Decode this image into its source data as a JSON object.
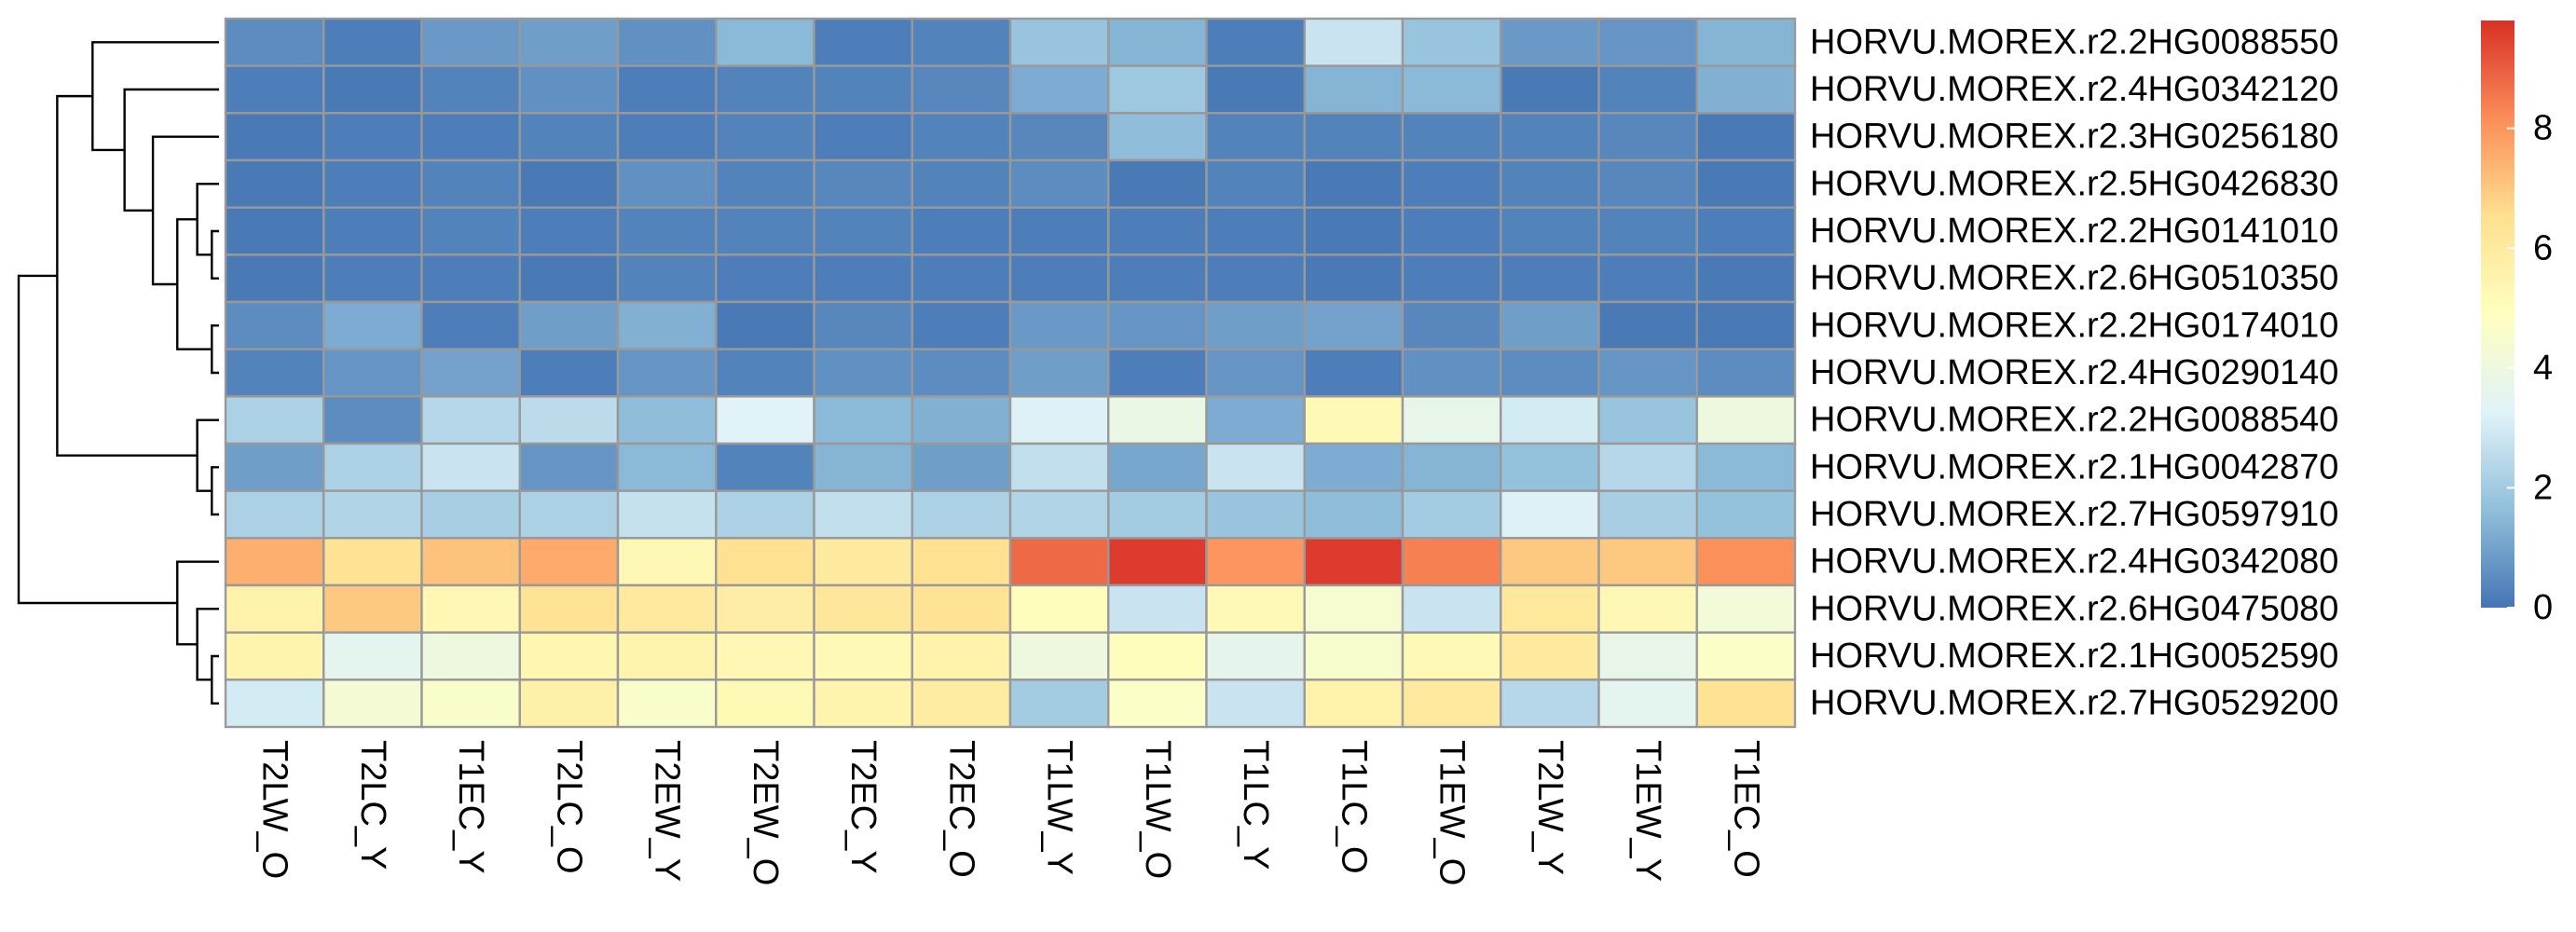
{
  "chart_data": {
    "type": "heatmap",
    "title": "",
    "xlabel": "",
    "ylabel": "",
    "columns": [
      "T2LW_O",
      "T2LC_Y",
      "T1EC_Y",
      "T2LC_O",
      "T2EW_Y",
      "T2EW_O",
      "T2EC_Y",
      "T2EC_O",
      "T1LW_Y",
      "T1LW_O",
      "T1LC_Y",
      "T1LC_O",
      "T1EW_O",
      "T2LW_Y",
      "T1EW_Y",
      "T1EC_O"
    ],
    "rows": [
      "HORVU.MOREX.r2.2HG0088550",
      "HORVU.MOREX.r2.4HG0342120",
      "HORVU.MOREX.r2.3HG0256180",
      "HORVU.MOREX.r2.5HG0426830",
      "HORVU.MOREX.r2.2HG0141010",
      "HORVU.MOREX.r2.6HG0510350",
      "HORVU.MOREX.r2.2HG0174010",
      "HORVU.MOREX.r2.4HG0290140",
      "HORVU.MOREX.r2.2HG0088540",
      "HORVU.MOREX.r2.1HG0042870",
      "HORVU.MOREX.r2.7HG0597910",
      "HORVU.MOREX.r2.4HG0342080",
      "HORVU.MOREX.r2.6HG0475080",
      "HORVU.MOREX.r2.1HG0052590",
      "HORVU.MOREX.r2.7HG0529200"
    ],
    "values": [
      [
        0.5,
        0.2,
        0.8,
        0.9,
        0.6,
        1.5,
        0.2,
        0.3,
        1.8,
        1.4,
        0.2,
        2.8,
        1.8,
        0.8,
        0.7,
        1.4
      ],
      [
        0.2,
        0.1,
        0.3,
        0.6,
        0.2,
        0.3,
        0.3,
        0.4,
        1.2,
        1.9,
        0.1,
        1.4,
        1.5,
        0.1,
        0.3,
        1.3
      ],
      [
        0.1,
        0.2,
        0.2,
        0.3,
        0.2,
        0.3,
        0.2,
        0.3,
        0.4,
        1.6,
        0.3,
        0.3,
        0.3,
        0.3,
        0.4,
        0.1
      ],
      [
        0.1,
        0.2,
        0.3,
        0.1,
        0.6,
        0.3,
        0.4,
        0.3,
        0.5,
        0.1,
        0.3,
        0.1,
        0.2,
        0.3,
        0.4,
        0.1
      ],
      [
        0.1,
        0.2,
        0.3,
        0.2,
        0.3,
        0.3,
        0.3,
        0.2,
        0.2,
        0.2,
        0.2,
        0.1,
        0.2,
        0.3,
        0.3,
        0.2
      ],
      [
        0.1,
        0.2,
        0.2,
        0.1,
        0.3,
        0.2,
        0.2,
        0.2,
        0.2,
        0.2,
        0.2,
        0.1,
        0.2,
        0.2,
        0.2,
        0.1
      ],
      [
        0.5,
        1.2,
        0.2,
        0.9,
        1.3,
        0.1,
        0.4,
        0.2,
        0.8,
        0.7,
        0.9,
        1.0,
        0.4,
        0.9,
        0.1,
        0.1
      ],
      [
        0.3,
        0.7,
        1.0,
        0.2,
        0.7,
        0.3,
        0.6,
        0.5,
        0.9,
        0.2,
        0.7,
        0.2,
        0.6,
        0.5,
        0.7,
        0.5
      ],
      [
        2.2,
        0.5,
        2.4,
        2.5,
        1.6,
        3.3,
        1.5,
        1.3,
        3.2,
        3.8,
        1.2,
        5.2,
        3.7,
        3.0,
        1.8,
        4.0
      ],
      [
        0.9,
        2.2,
        2.8,
        0.7,
        1.5,
        0.3,
        1.4,
        0.9,
        2.6,
        1.1,
        2.8,
        1.2,
        1.4,
        1.7,
        2.4,
        1.5
      ],
      [
        2.2,
        2.3,
        2.1,
        2.2,
        2.7,
        2.2,
        2.6,
        2.2,
        2.3,
        2.0,
        1.8,
        1.6,
        2.0,
        3.2,
        2.1,
        1.7
      ],
      [
        7.5,
        6.4,
        7.1,
        7.6,
        5.3,
        6.5,
        6.0,
        6.5,
        8.8,
        9.6,
        8.0,
        9.6,
        8.4,
        7.0,
        7.0,
        8.1
      ],
      [
        5.6,
        7.0,
        5.3,
        6.4,
        6.0,
        5.8,
        6.2,
        6.4,
        5.0,
        2.8,
        5.2,
        4.4,
        2.8,
        6.1,
        5.3,
        4.2
      ],
      [
        5.5,
        3.5,
        4.0,
        5.4,
        5.5,
        5.3,
        5.2,
        5.6,
        4.0,
        5.0,
        3.6,
        4.5,
        5.2,
        6.0,
        3.7,
        4.7
      ],
      [
        3.0,
        4.3,
        4.6,
        5.7,
        4.6,
        5.2,
        5.5,
        5.9,
        2.0,
        4.7,
        2.8,
        5.6,
        6.0,
        2.4,
        3.5,
        6.4
      ]
    ],
    "colorscale": [
      "#4575B4",
      "#91BFDB",
      "#E0F3F8",
      "#FFFFBF",
      "#FEE090",
      "#FC8D59",
      "#D73027"
    ],
    "legend": {
      "placement": "right",
      "ticks": [
        0,
        2,
        4,
        6,
        8
      ],
      "min": 0,
      "max": 9.8
    },
    "cell_border_color": "#999999",
    "row_dendrogram": true,
    "row_order_tree": [
      [
        [
          0,
          [
            1,
            [
              2,
              [
                [
                  3,
                  [
                    4,
                    5
                  ]
                ],
                [
                  6,
                  7
                ]
              ]
            ]
          ]
        ],
        [
          8,
          [
            9,
            10
          ]
        ]
      ],
      [
        11,
        [
          12,
          [
            13,
            14
          ]
        ]
      ]
    ]
  }
}
